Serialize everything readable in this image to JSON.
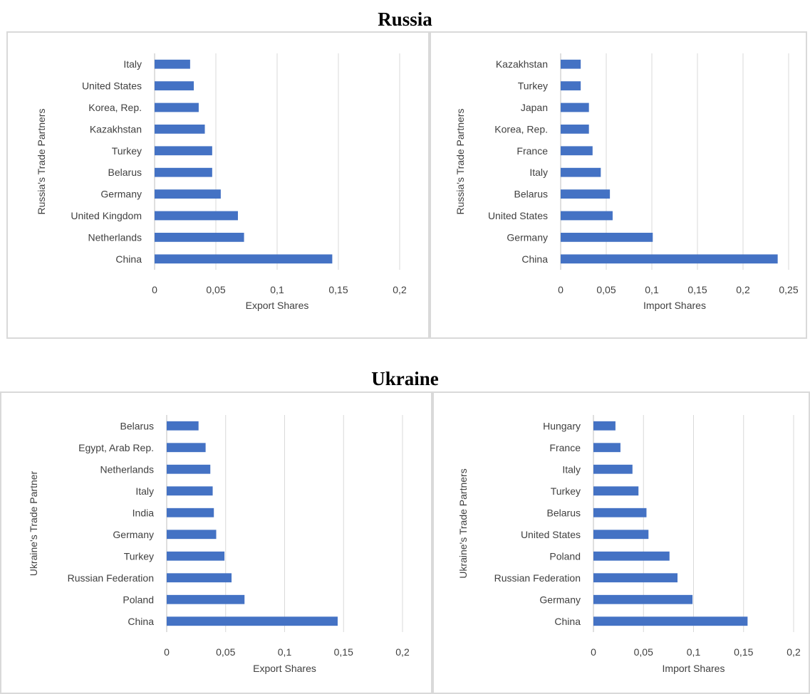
{
  "sections": {
    "russia_title": "Russia",
    "ukraine_title": "Ukraine"
  },
  "chart_data": [
    {
      "type": "bar",
      "orientation": "horizontal",
      "categories": [
        "China",
        "Netherlands",
        "United Kingdom",
        "Germany",
        "Belarus",
        "Turkey",
        "Kazakhstan",
        "Korea, Rep.",
        "United States",
        "Italy"
      ],
      "values": [
        0.145,
        0.073,
        0.068,
        0.054,
        0.047,
        0.047,
        0.041,
        0.036,
        0.032,
        0.029
      ],
      "xlabel": "Export Shares",
      "ylabel": "Russia's Trade Partners",
      "xlim": [
        0,
        0.2
      ],
      "xticks": [
        "0",
        "0,05",
        "0,1",
        "0,15",
        "0,2"
      ],
      "grid": true,
      "color": "#4472c4"
    },
    {
      "type": "bar",
      "orientation": "horizontal",
      "categories": [
        "China",
        "Germany",
        "United States",
        "Belarus",
        "Italy",
        "France",
        "Korea, Rep.",
        "Japan",
        "Turkey",
        "Kazakhstan"
      ],
      "values": [
        0.238,
        0.101,
        0.057,
        0.054,
        0.044,
        0.035,
        0.031,
        0.031,
        0.022,
        0.022
      ],
      "xlabel": "Import Shares",
      "ylabel": "Russia's Trade Partners",
      "xlim": [
        0,
        0.25
      ],
      "xticks": [
        "0",
        "0,05",
        "0,1",
        "0,15",
        "0,2",
        "0,25"
      ],
      "grid": true,
      "color": "#4472c4"
    },
    {
      "type": "bar",
      "orientation": "horizontal",
      "categories": [
        "China",
        "Poland",
        "Russian Federation",
        "Turkey",
        "Germany",
        "India",
        "Italy",
        "Netherlands",
        "Egypt, Arab Rep.",
        "Belarus"
      ],
      "values": [
        0.145,
        0.066,
        0.055,
        0.049,
        0.042,
        0.04,
        0.039,
        0.037,
        0.033,
        0.027
      ],
      "xlabel": "Export Shares",
      "ylabel": "Ukraine's Trade Partner",
      "xlim": [
        0,
        0.2
      ],
      "xticks": [
        "0",
        "0,05",
        "0,1",
        "0,15",
        "0,2"
      ],
      "grid": true,
      "color": "#4472c4"
    },
    {
      "type": "bar",
      "orientation": "horizontal",
      "categories": [
        "China",
        "Germany",
        "Russian Federation",
        "Poland",
        "United States",
        "Belarus",
        "Turkey",
        "Italy",
        "France",
        "Hungary"
      ],
      "values": [
        0.154,
        0.099,
        0.084,
        0.076,
        0.055,
        0.053,
        0.045,
        0.039,
        0.027,
        0.022
      ],
      "xlabel": "Import Shares",
      "ylabel": "Ukraine's Trade Partners",
      "xlim": [
        0,
        0.2
      ],
      "xticks": [
        "0",
        "0,05",
        "0,1",
        "0,15",
        "0,2"
      ],
      "grid": true,
      "color": "#4472c4"
    }
  ]
}
